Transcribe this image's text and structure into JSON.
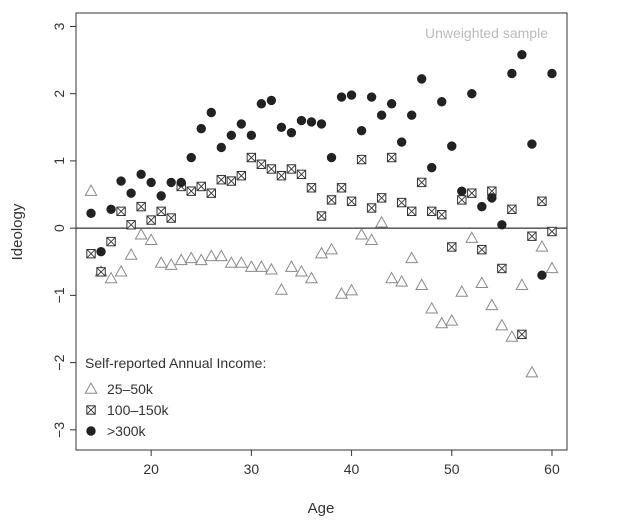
{
  "chart_data": {
    "type": "scatter",
    "xlabel": "Age",
    "ylabel": "Ideology",
    "xlim": [
      12.5,
      61.5
    ],
    "ylim": [
      -3.3,
      3.2
    ],
    "x_ticks": [
      20,
      30,
      40,
      50,
      60
    ],
    "y_ticks": [
      -3,
      -2,
      -1,
      0,
      1,
      2,
      3
    ],
    "reference_line_y": 0,
    "annotation": "Unweighted sample",
    "legend": {
      "title": "Self-reported Annual Income:",
      "placement": "bottom-left"
    },
    "series": [
      {
        "name": "25–50k",
        "marker": "triangle-open",
        "color": "#888888",
        "x": [
          14,
          15,
          16,
          17,
          18,
          19,
          20,
          21,
          22,
          23,
          24,
          25,
          26,
          27,
          28,
          29,
          30,
          31,
          32,
          33,
          34,
          35,
          36,
          37,
          38,
          39,
          40,
          41,
          42,
          43,
          44,
          45,
          46,
          47,
          48,
          49,
          50,
          51,
          52,
          53,
          54,
          55,
          56,
          57,
          58,
          59,
          60
        ],
        "y": [
          0.55,
          -0.65,
          -0.75,
          -0.65,
          -0.4,
          -0.1,
          -0.18,
          -0.52,
          -0.55,
          -0.48,
          -0.45,
          -0.48,
          -0.42,
          -0.42,
          -0.52,
          -0.52,
          -0.58,
          -0.58,
          -0.62,
          -0.92,
          -0.58,
          -0.65,
          -0.75,
          -0.38,
          -0.32,
          -0.98,
          -0.93,
          -0.1,
          -0.18,
          0.08,
          -0.75,
          -0.8,
          -0.45,
          -0.85,
          -1.2,
          -1.42,
          -1.38,
          -0.95,
          -0.15,
          -0.82,
          -1.15,
          -1.45,
          -1.62,
          -0.85,
          -2.15,
          -0.28,
          -0.6
        ]
      },
      {
        "name": "100–150k",
        "marker": "square-cross",
        "color": "#333333",
        "x": [
          14,
          15,
          16,
          17,
          18,
          19,
          20,
          21,
          22,
          23,
          24,
          25,
          26,
          27,
          28,
          29,
          30,
          31,
          32,
          33,
          34,
          35,
          36,
          37,
          38,
          39,
          40,
          41,
          42,
          43,
          44,
          45,
          46,
          47,
          48,
          49,
          50,
          51,
          52,
          53,
          54,
          55,
          56,
          57,
          58,
          59,
          60
        ],
        "y": [
          -0.38,
          -0.65,
          -0.2,
          0.25,
          0.05,
          0.32,
          0.12,
          0.25,
          0.15,
          0.62,
          0.55,
          0.62,
          0.52,
          0.72,
          0.7,
          0.78,
          1.05,
          0.95,
          0.88,
          0.78,
          0.88,
          0.8,
          0.6,
          0.18,
          0.42,
          0.6,
          0.4,
          1.02,
          0.3,
          0.45,
          1.05,
          0.38,
          0.25,
          0.68,
          0.25,
          0.2,
          -0.28,
          0.42,
          0.52,
          -0.32,
          0.55,
          -0.6,
          0.28,
          -1.58,
          -0.12,
          0.4,
          -0.05
        ]
      },
      {
        "name": ">300k",
        "marker": "circle-filled",
        "color": "#222222",
        "x": [
          14,
          15,
          16,
          17,
          18,
          19,
          20,
          21,
          22,
          23,
          24,
          25,
          26,
          27,
          28,
          29,
          30,
          31,
          32,
          33,
          34,
          35,
          36,
          37,
          38,
          39,
          40,
          41,
          42,
          43,
          44,
          45,
          46,
          47,
          48,
          49,
          50,
          51,
          52,
          53,
          54,
          55,
          56,
          57,
          58,
          59,
          60
        ],
        "y": [
          0.22,
          -0.35,
          0.28,
          0.7,
          0.52,
          0.8,
          0.68,
          0.48,
          0.68,
          0.68,
          1.05,
          1.48,
          1.72,
          1.2,
          1.38,
          1.55,
          1.38,
          1.85,
          1.9,
          1.5,
          1.42,
          1.6,
          1.58,
          1.55,
          1.05,
          1.95,
          1.98,
          1.45,
          1.95,
          1.68,
          1.85,
          1.28,
          1.68,
          2.22,
          0.9,
          1.88,
          1.22,
          0.55,
          2.0,
          0.32,
          0.45,
          0.05,
          2.3,
          2.58,
          1.25,
          -0.7,
          2.3
        ]
      }
    ]
  }
}
